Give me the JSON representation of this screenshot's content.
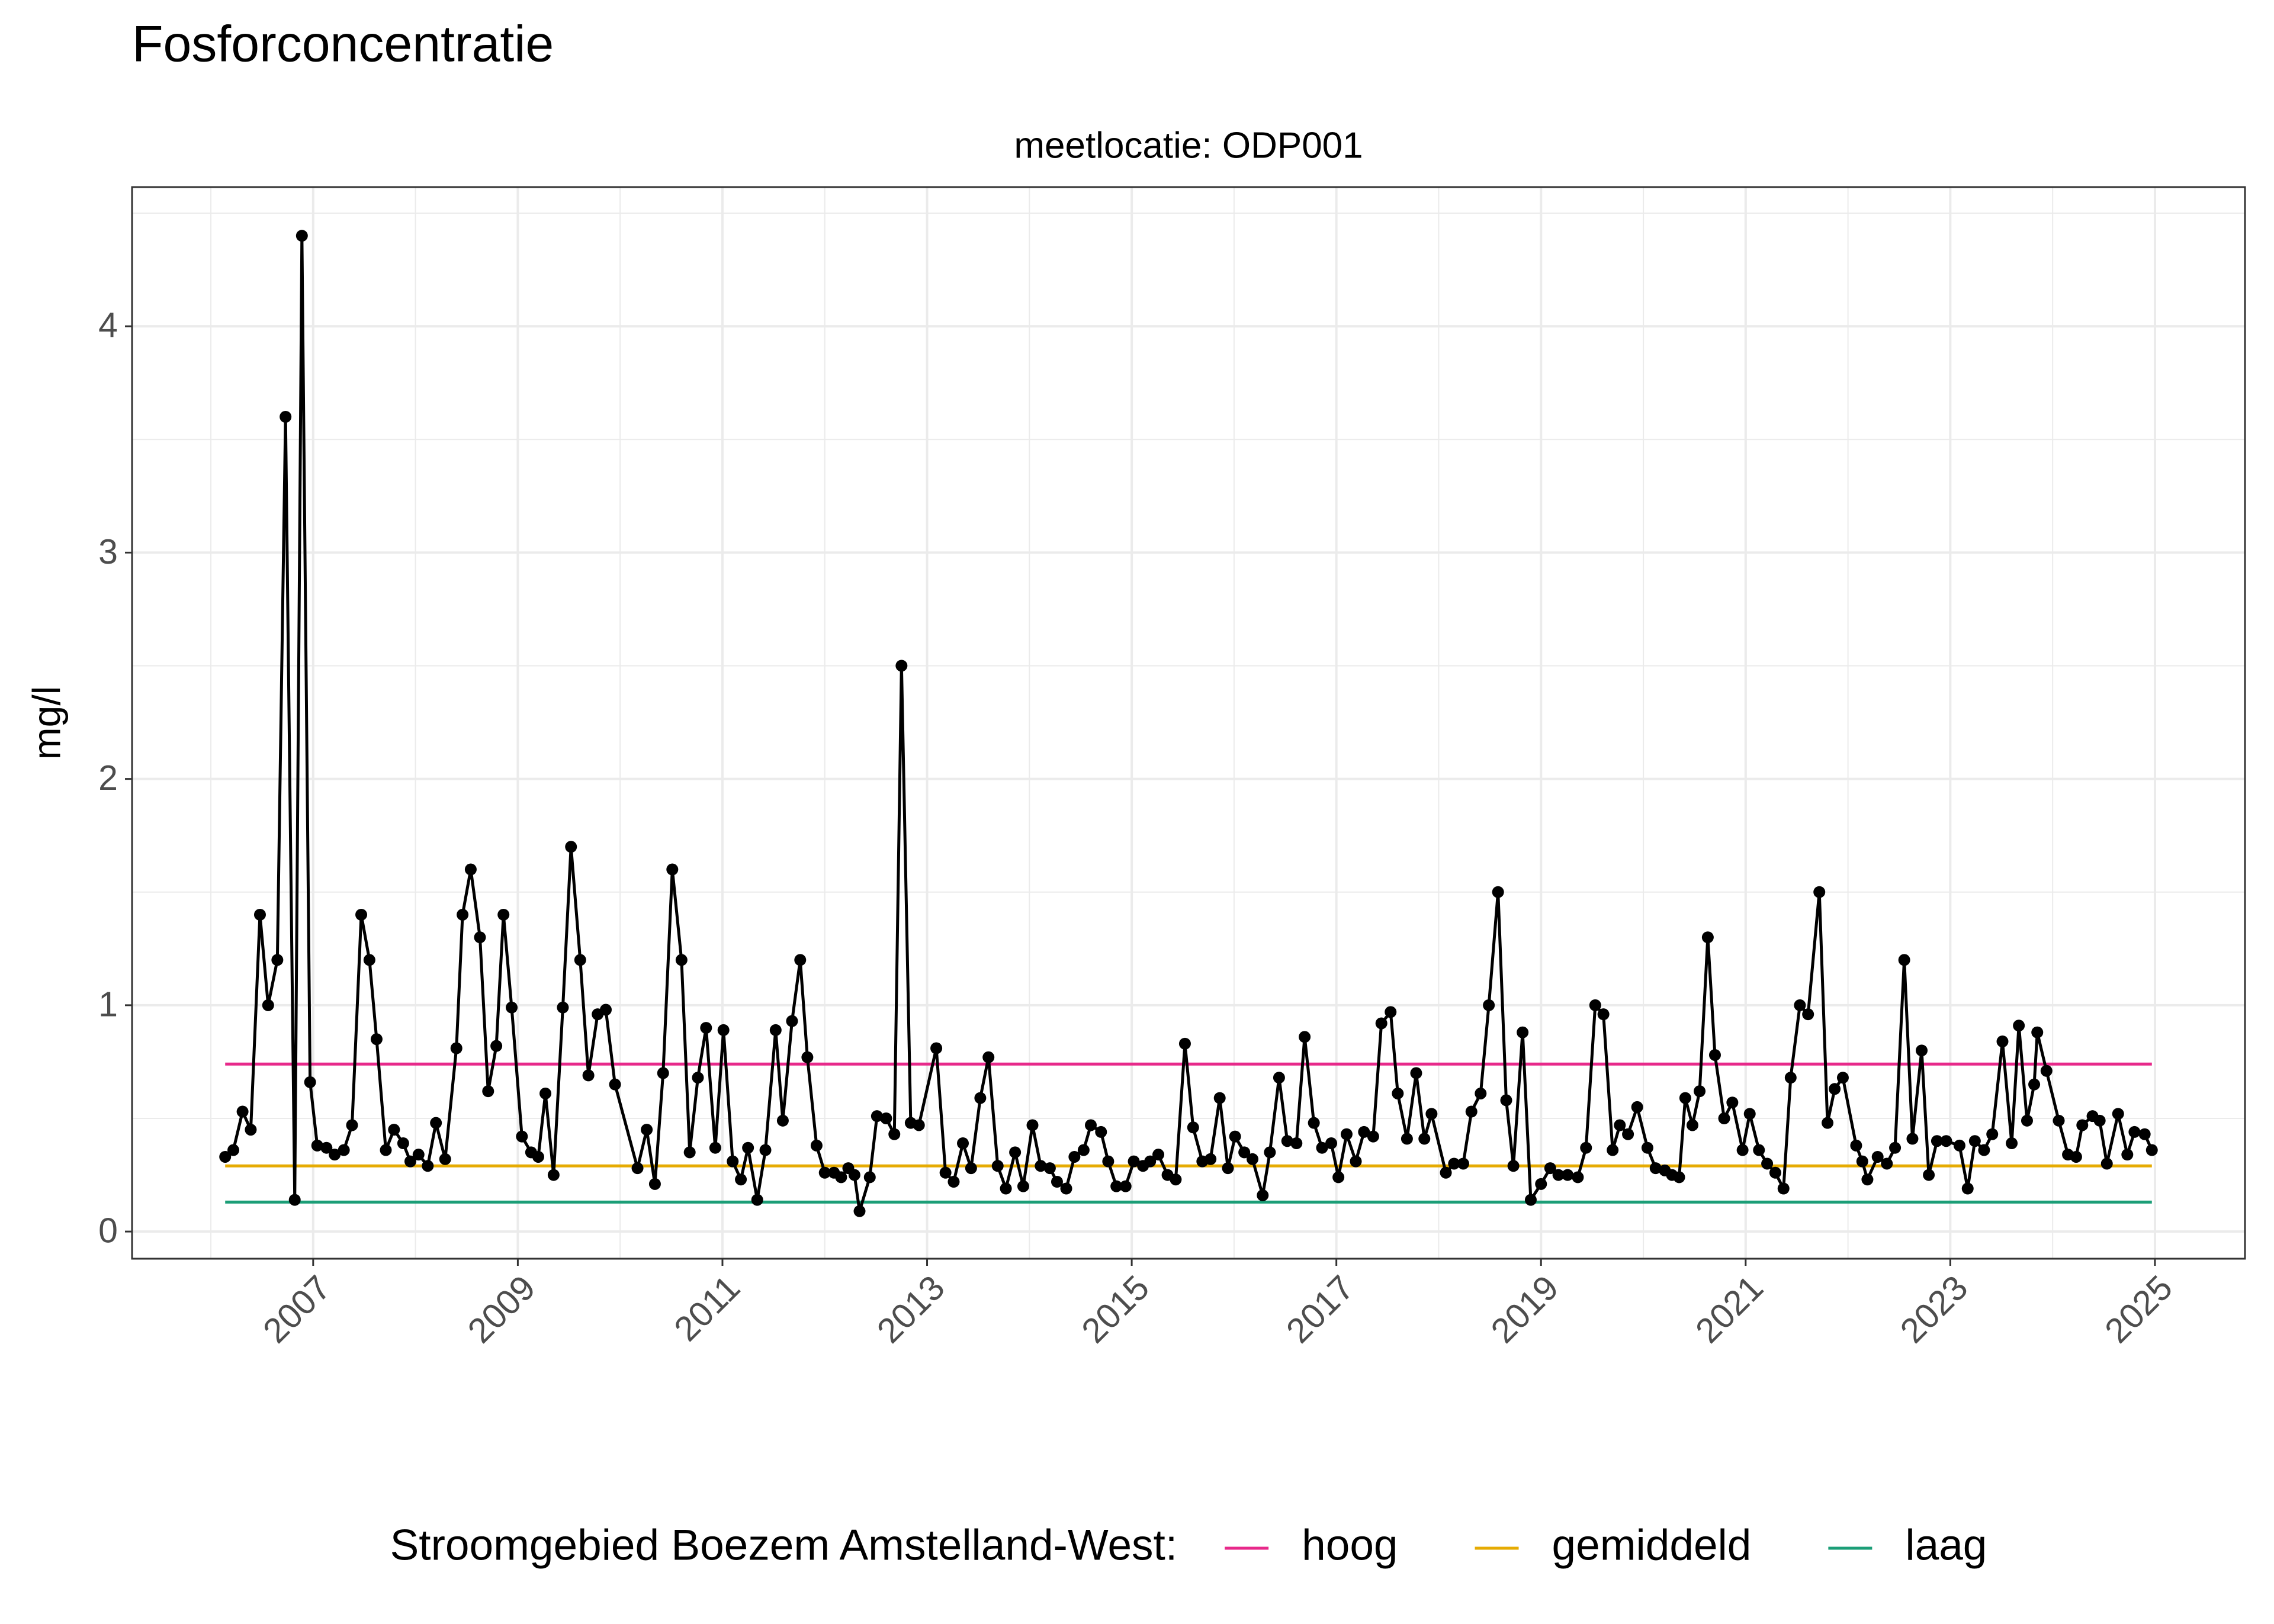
{
  "chart_data": {
    "type": "line",
    "title": "Fosforconcentratie",
    "subtitle": "meetlocatie: ODP001",
    "ylabel": "mg/l",
    "color": "#000000",
    "x": [
      2006.14,
      2006.22,
      2006.31,
      2006.39,
      2006.48,
      2006.56,
      2006.65,
      2006.73,
      2006.82,
      2006.89,
      2006.97,
      2007.04,
      2007.13,
      2007.21,
      2007.3,
      2007.38,
      2007.47,
      2007.55,
      2007.62,
      2007.71,
      2007.79,
      2007.88,
      2007.95,
      2008.03,
      2008.12,
      2008.2,
      2008.29,
      2008.4,
      2008.46,
      2008.54,
      2008.63,
      2008.71,
      2008.79,
      2008.86,
      2008.94,
      2009.04,
      2009.13,
      2009.2,
      2009.27,
      2009.35,
      2009.44,
      2009.52,
      2009.61,
      2009.69,
      2009.78,
      2009.86,
      2009.95,
      2010.17,
      2010.26,
      2010.34,
      2010.42,
      2010.51,
      2010.6,
      2010.68,
      2010.76,
      2010.84,
      2010.93,
      2011.01,
      2011.1,
      2011.18,
      2011.25,
      2011.34,
      2011.42,
      2011.52,
      2011.59,
      2011.68,
      2011.76,
      2011.83,
      2011.92,
      2012.0,
      2012.09,
      2012.16,
      2012.23,
      2012.29,
      2012.34,
      2012.44,
      2012.51,
      2012.6,
      2012.68,
      2012.75,
      2012.84,
      2012.92,
      2013.09,
      2013.18,
      2013.26,
      2013.35,
      2013.43,
      2013.52,
      2013.6,
      2013.69,
      2013.77,
      2013.86,
      2013.94,
      2014.03,
      2014.11,
      2014.2,
      2014.27,
      2014.36,
      2014.44,
      2014.53,
      2014.6,
      2014.7,
      2014.77,
      2014.85,
      2014.94,
      2015.02,
      2015.11,
      2015.18,
      2015.26,
      2015.35,
      2015.43,
      2015.52,
      2015.6,
      2015.69,
      2015.77,
      2015.86,
      2015.94,
      2016.01,
      2016.1,
      2016.18,
      2016.28,
      2016.35,
      2016.44,
      2016.52,
      2016.61,
      2016.69,
      2016.78,
      2016.86,
      2016.95,
      2017.02,
      2017.1,
      2017.19,
      2017.27,
      2017.36,
      2017.44,
      2017.53,
      2017.6,
      2017.69,
      2017.78,
      2017.86,
      2017.93,
      2018.07,
      2018.15,
      2018.24,
      2018.32,
      2018.41,
      2018.49,
      2018.58,
      2018.66,
      2018.73,
      2018.82,
      2018.9,
      2019.0,
      2019.09,
      2019.17,
      2019.26,
      2019.36,
      2019.44,
      2019.53,
      2019.61,
      2019.7,
      2019.77,
      2019.85,
      2019.94,
      2020.04,
      2020.12,
      2020.21,
      2020.28,
      2020.35,
      2020.41,
      2020.48,
      2020.55,
      2020.63,
      2020.7,
      2020.79,
      2020.87,
      2020.97,
      2021.04,
      2021.13,
      2021.21,
      2021.29,
      2021.37,
      2021.44,
      2021.53,
      2021.61,
      2021.72,
      2021.8,
      2021.87,
      2021.95,
      2022.08,
      2022.14,
      2022.19,
      2022.29,
      2022.38,
      2022.46,
      2022.55,
      2022.63,
      2022.72,
      2022.79,
      2022.87,
      2022.96,
      2023.09,
      2023.17,
      2023.24,
      2023.33,
      2023.41,
      2023.51,
      2023.6,
      2023.67,
      2023.75,
      2023.82,
      2023.85,
      2023.94,
      2024.06,
      2024.15,
      2024.23,
      2024.29,
      2024.39,
      2024.46,
      2024.53,
      2024.64,
      2024.73,
      2024.8,
      2024.9,
      2024.97
    ],
    "values": [
      0.33,
      0.36,
      0.53,
      0.45,
      1.4,
      1.0,
      1.2,
      3.6,
      0.14,
      4.4,
      0.66,
      0.38,
      0.37,
      0.34,
      0.36,
      0.47,
      1.4,
      1.2,
      0.85,
      0.36,
      0.45,
      0.39,
      0.31,
      0.34,
      0.29,
      0.48,
      0.32,
      0.81,
      1.4,
      1.6,
      1.3,
      0.62,
      0.82,
      1.4,
      0.99,
      0.42,
      0.35,
      0.33,
      0.61,
      0.25,
      0.99,
      1.7,
      1.2,
      0.69,
      0.96,
      0.98,
      0.65,
      0.28,
      0.45,
      0.21,
      0.7,
      1.6,
      1.2,
      0.35,
      0.68,
      0.9,
      0.37,
      0.89,
      0.31,
      0.23,
      0.37,
      0.14,
      0.36,
      0.89,
      0.49,
      0.93,
      1.2,
      0.77,
      0.38,
      0.26,
      0.26,
      0.24,
      0.28,
      0.25,
      0.09,
      0.24,
      0.51,
      0.5,
      0.43,
      2.5,
      0.48,
      0.47,
      0.81,
      0.26,
      0.22,
      0.39,
      0.28,
      0.59,
      0.77,
      0.29,
      0.19,
      0.35,
      0.2,
      0.47,
      0.29,
      0.28,
      0.22,
      0.19,
      0.33,
      0.36,
      0.47,
      0.44,
      0.31,
      0.2,
      0.2,
      0.31,
      0.29,
      0.31,
      0.34,
      0.25,
      0.23,
      0.83,
      0.46,
      0.31,
      0.32,
      0.59,
      0.28,
      0.42,
      0.35,
      0.32,
      0.16,
      0.35,
      0.68,
      0.4,
      0.39,
      0.86,
      0.48,
      0.37,
      0.39,
      0.24,
      0.43,
      0.31,
      0.44,
      0.42,
      0.92,
      0.97,
      0.61,
      0.41,
      0.7,
      0.41,
      0.52,
      0.26,
      0.3,
      0.3,
      0.53,
      0.61,
      1.0,
      1.5,
      0.58,
      0.29,
      0.88,
      0.14,
      0.21,
      0.28,
      0.25,
      0.25,
      0.24,
      0.37,
      1.0,
      0.96,
      0.36,
      0.47,
      0.43,
      0.55,
      0.37,
      0.28,
      0.27,
      0.25,
      0.24,
      0.59,
      0.47,
      0.62,
      1.3,
      0.78,
      0.5,
      0.57,
      0.36,
      0.52,
      0.36,
      0.3,
      0.26,
      0.19,
      0.68,
      1.0,
      0.96,
      1.5,
      0.48,
      0.63,
      0.68,
      0.38,
      0.31,
      0.23,
      0.33,
      0.3,
      0.37,
      1.2,
      0.41,
      0.8,
      0.25,
      0.4,
      0.4,
      0.38,
      0.19,
      0.4,
      0.36,
      0.43,
      0.84,
      0.39,
      0.91,
      0.49,
      0.65,
      0.88,
      0.71,
      0.49,
      0.34,
      0.33,
      0.47,
      0.51,
      0.49,
      0.3,
      0.52,
      0.34,
      0.44,
      0.43,
      0.36
    ],
    "reference_lines": {
      "title": "Stroomgebied Boezem Amstelland-West:",
      "lines": [
        {
          "name": "hoog",
          "color": "#e7298a",
          "value": 0.74
        },
        {
          "name": "gemiddeld",
          "color": "#e6ab02",
          "value": 0.29
        },
        {
          "name": "laag",
          "color": "#1b9e77",
          "value": 0.13
        }
      ]
    },
    "xlim": [
      2005.23,
      2025.88
    ],
    "ylim": [
      -0.12,
      4.615
    ],
    "xticks": [
      2007,
      2009,
      2011,
      2013,
      2015,
      2017,
      2019,
      2021,
      2023,
      2025
    ],
    "yticks": [
      0,
      1,
      2,
      3,
      4
    ],
    "xminor_ticks": [
      2006,
      2008,
      2010,
      2012,
      2014,
      2016,
      2018,
      2020,
      2022,
      2024
    ],
    "yminor_ticks": [
      0.5,
      1.5,
      2.5,
      3.5,
      4.5
    ],
    "grid": true
  }
}
